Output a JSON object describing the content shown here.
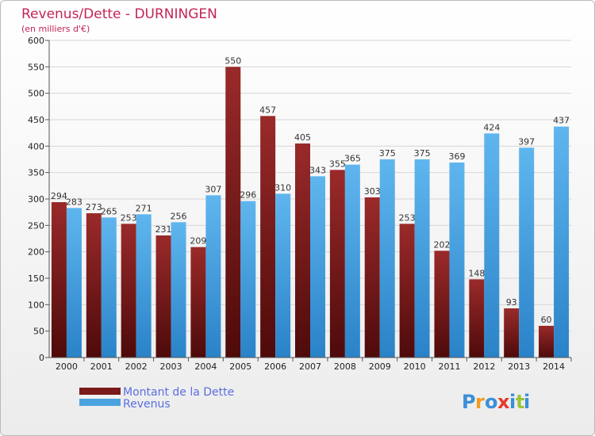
{
  "chart_data": {
    "type": "bar",
    "title": "Revenus/Dette - DURNINGEN",
    "subtitle": "(en milliers d'€)",
    "xlabel": "",
    "ylabel": "",
    "ylim": [
      0,
      600
    ],
    "yticks": [
      0,
      50,
      100,
      150,
      200,
      250,
      300,
      350,
      400,
      450,
      500,
      550,
      600
    ],
    "grid": true,
    "categories": [
      "2000",
      "2001",
      "2002",
      "2003",
      "2004",
      "2005",
      "2006",
      "2007",
      "2008",
      "2009",
      "2010",
      "2011",
      "2012",
      "2013",
      "2014"
    ],
    "series": [
      {
        "name": "Montant de la Dette",
        "color": "#7a1a1a",
        "values": [
          294,
          273,
          253,
          231,
          209,
          550,
          457,
          405,
          355,
          303,
          253,
          202,
          148,
          93,
          60
        ]
      },
      {
        "name": "Revenus",
        "color": "#4aa3e0",
        "values": [
          283,
          265,
          271,
          256,
          307,
          296,
          310,
          343,
          365,
          375,
          375,
          369,
          424,
          397,
          437
        ]
      }
    ],
    "legend_position": "bottom-left"
  },
  "branding": {
    "logo_letters": [
      "P",
      "r",
      "o",
      "x",
      "i",
      "t",
      "i"
    ],
    "logo_colors": [
      "#3a8fd8",
      "#f29a1d",
      "#3a8fd8",
      "#e53a2a",
      "#3a8fd8",
      "#9bc43a",
      "#3a8fd8"
    ]
  }
}
